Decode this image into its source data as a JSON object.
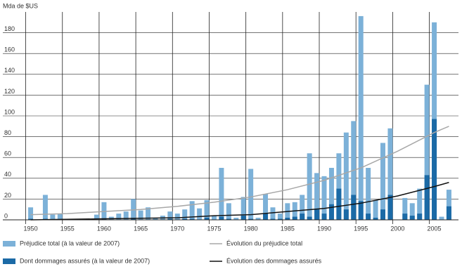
{
  "chart_data": {
    "type": "bar",
    "y_label": "Mda de $US",
    "x": [
      1950,
      1951,
      1952,
      1953,
      1954,
      1955,
      1956,
      1957,
      1958,
      1959,
      1960,
      1961,
      1962,
      1963,
      1964,
      1965,
      1966,
      1967,
      1968,
      1969,
      1970,
      1971,
      1972,
      1973,
      1974,
      1975,
      1976,
      1977,
      1978,
      1979,
      1980,
      1981,
      1982,
      1983,
      1984,
      1985,
      1986,
      1987,
      1988,
      1989,
      1990,
      1991,
      1992,
      1993,
      1994,
      1995,
      1996,
      1997,
      1998,
      1999,
      2000,
      2001,
      2002,
      2003,
      2004,
      2005,
      2006,
      2007
    ],
    "series": [
      {
        "name": "Préjudice total (à la valeur de 2007)",
        "type": "bar",
        "color": "#7cb1d8",
        "values": [
          12,
          0,
          24,
          5,
          6,
          0,
          0,
          0,
          0,
          5,
          17,
          3,
          6,
          8,
          20,
          9,
          12,
          2,
          4,
          8,
          6,
          10,
          18,
          11,
          19,
          4,
          50,
          16,
          2,
          22,
          49,
          2,
          25,
          12,
          6,
          16,
          17,
          24,
          64,
          45,
          42,
          50,
          64,
          84,
          95,
          196,
          50,
          19,
          74,
          88,
          0,
          21,
          16,
          30,
          130,
          190,
          3,
          29
        ]
      },
      {
        "name": "Dont dommages assurés (à la valeur de 2007)",
        "type": "bar",
        "color": "#1b6aa6",
        "values": [
          1,
          0,
          1,
          0,
          0,
          0,
          0,
          0,
          0,
          0,
          1,
          0,
          0,
          0,
          1,
          0,
          0,
          0,
          0,
          1,
          0,
          1,
          1,
          0,
          2,
          0,
          3,
          1,
          0,
          4,
          1,
          0,
          6,
          1,
          1,
          2,
          3,
          6,
          3,
          10,
          6,
          15,
          30,
          10,
          24,
          18,
          6,
          2,
          10,
          24,
          0,
          6,
          4,
          6,
          43,
          97,
          0,
          13
        ]
      },
      {
        "name": "Évolution du préjudice total",
        "type": "line",
        "color": "#a8a8a8",
        "x": [
          1950,
          1955,
          1960,
          1965,
          1970,
          1975,
          1980,
          1985,
          1990,
          1995,
          2000,
          2005,
          2007
        ],
        "values": [
          5,
          6,
          8,
          10,
          13,
          17,
          22,
          29,
          38,
          50,
          66,
          84,
          90
        ]
      },
      {
        "name": "Évolution des dommages assurés",
        "type": "line",
        "color": "#111111",
        "x": [
          1950,
          1960,
          1970,
          1975,
          1980,
          1985,
          1990,
          1995,
          2000,
          2005,
          2007
        ],
        "values": [
          0,
          1,
          2,
          4,
          5,
          8,
          11,
          16,
          23,
          32,
          36
        ]
      }
    ],
    "xlim": [
      1948.7,
      2008.3
    ],
    "xticks": [
      1950,
      1955,
      1960,
      1965,
      1970,
      1975,
      1980,
      1985,
      1990,
      1995,
      2000,
      2005
    ],
    "ylim": [
      0,
      200
    ],
    "yticks": [
      0,
      20,
      40,
      60,
      80,
      100,
      120,
      140,
      160,
      180
    ],
    "grid": true
  }
}
